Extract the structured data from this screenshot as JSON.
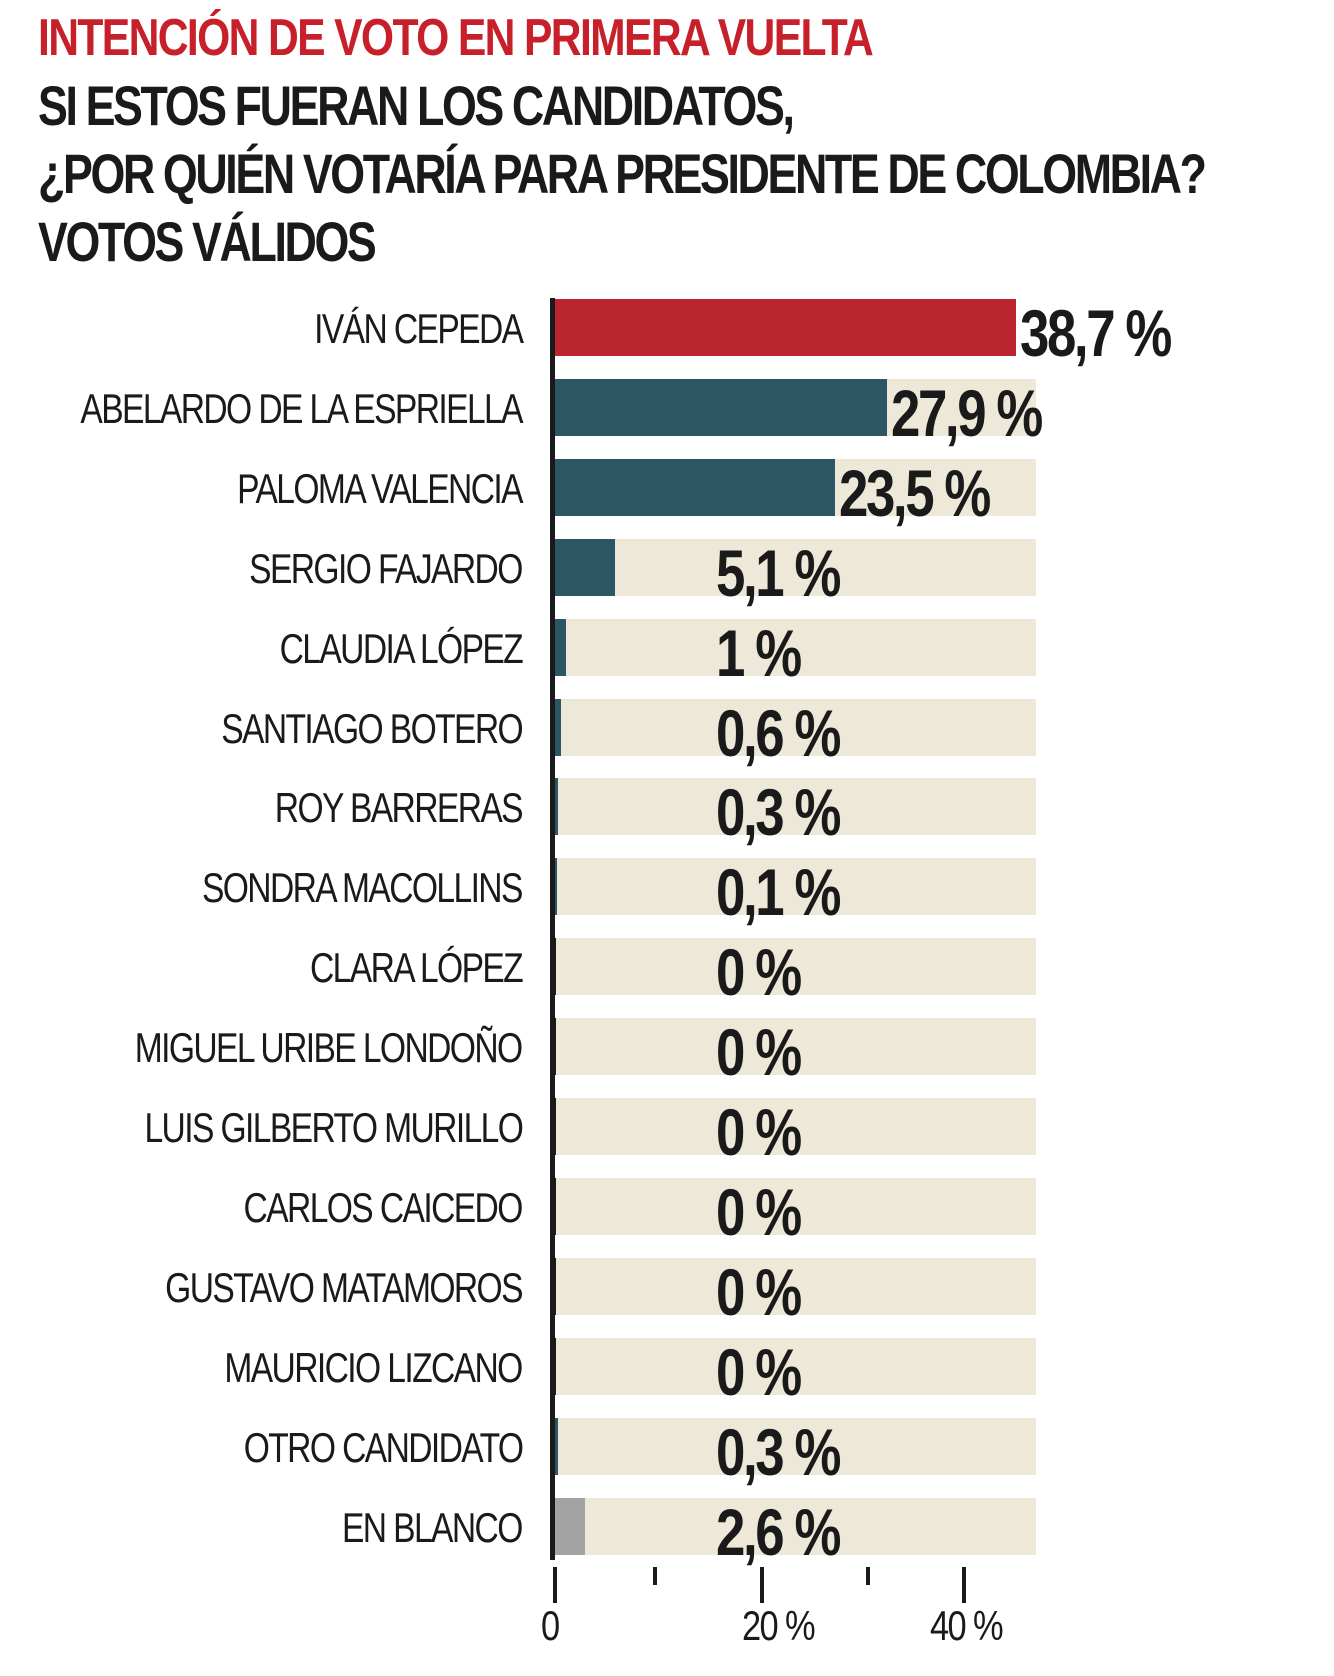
{
  "header": {
    "title": "INTENCIÓN DE VOTO EN PRIMERA VUELTA",
    "subtitle_lines": [
      "SI ESTOS FUERAN LOS CANDIDATOS,",
      "¿POR QUIÉN VOTARÍA PARA PRESIDENTE DE COLOMBIA?",
      "VOTOS VÁLIDOS"
    ]
  },
  "colors": {
    "title": "#c8202b",
    "leader_bar": "#bb2530",
    "candidate_bar": "#2d5664",
    "blank_bar": "#a3a3a3",
    "track": "#ede8d8",
    "axis": "#1a1a1a"
  },
  "chart_data": {
    "type": "bar",
    "orientation": "horizontal",
    "title": "INTENCIÓN DE VOTO EN PRIMERA VUELTA",
    "subtitle": "SI ESTOS FUERAN LOS CANDIDATOS, ¿POR QUIÉN VOTARÍA PARA PRESIDENTE DE COLOMBIA? VOTOS VÁLIDOS",
    "xlabel": "",
    "ylabel": "",
    "xlim": [
      0,
      40
    ],
    "x_ticks": [
      "0",
      "20 %",
      "40 %"
    ],
    "minor_ticks": [
      10,
      30
    ],
    "grid": false,
    "legend": null,
    "categories": [
      "IVÁN CEPEDA",
      "ABELARDO DE LA ESPRIELLA",
      "PALOMA VALENCIA",
      "SERGIO FAJARDO",
      "CLAUDIA LÓPEZ",
      "SANTIAGO BOTERO",
      "ROY BARRERAS",
      "SONDRA MACOLLINS",
      "CLARA LÓPEZ",
      "MIGUEL URIBE LONDOÑO",
      "LUIS GILBERTO MURILLO",
      "CARLOS CAICEDO",
      "GUSTAVO MATAMOROS",
      "MAURICIO LIZCANO",
      "OTRO CANDIDATO",
      "EN BLANCO"
    ],
    "values": [
      38.7,
      27.9,
      23.5,
      5.1,
      1,
      0.6,
      0.3,
      0.1,
      0,
      0,
      0,
      0,
      0,
      0,
      0.3,
      2.6
    ],
    "value_labels": [
      "38,7 %",
      "27,9 %",
      "23,5 %",
      "5,1 %",
      "1 %",
      "0,6 %",
      "0,3 %",
      "0,1 %",
      "0 %",
      "0 %",
      "0 %",
      "0 %",
      "0 %",
      "0 %",
      "0,3 %",
      "2,6 %"
    ]
  },
  "rows": [
    {
      "name": "IVÁN CEPEDA",
      "value": 38.7,
      "label": "38,7 %",
      "color": "#bb2530"
    },
    {
      "name": "ABELARDO DE LA ESPRIELLA",
      "value": 27.9,
      "label": "27,9 %",
      "color": "#2d5664"
    },
    {
      "name": "PALOMA VALENCIA",
      "value": 23.5,
      "label": "23,5 %",
      "color": "#2d5664"
    },
    {
      "name": "SERGIO FAJARDO",
      "value": 5.1,
      "label": "5,1 %",
      "color": "#2d5664"
    },
    {
      "name": "CLAUDIA LÓPEZ",
      "value": 1,
      "label": "1 %",
      "color": "#2d5664"
    },
    {
      "name": "SANTIAGO BOTERO",
      "value": 0.6,
      "label": "0,6 %",
      "color": "#2d5664"
    },
    {
      "name": "ROY BARRERAS",
      "value": 0.3,
      "label": "0,3 %",
      "color": "#2d5664"
    },
    {
      "name": "SONDRA MACOLLINS",
      "value": 0.1,
      "label": "0,1 %",
      "color": "#2d5664"
    },
    {
      "name": "CLARA LÓPEZ",
      "value": 0,
      "label": "0 %",
      "color": "#2d5664"
    },
    {
      "name": "MIGUEL URIBE LONDOÑO",
      "value": 0,
      "label": "0 %",
      "color": "#2d5664"
    },
    {
      "name": "LUIS GILBERTO MURILLO",
      "value": 0,
      "label": "0 %",
      "color": "#2d5664"
    },
    {
      "name": "CARLOS CAICEDO",
      "value": 0,
      "label": "0 %",
      "color": "#2d5664"
    },
    {
      "name": "GUSTAVO MATAMOROS",
      "value": 0,
      "label": "0 %",
      "color": "#2d5664"
    },
    {
      "name": "MAURICIO LIZCANO",
      "value": 0,
      "label": "0 %",
      "color": "#2d5664"
    },
    {
      "name": "OTRO CANDIDATO",
      "value": 0.3,
      "label": "0,3 %",
      "color": "#2d5664"
    },
    {
      "name": "EN BLANCO",
      "value": 2.6,
      "label": "2,6 %",
      "color": "#a3a3a3"
    }
  ],
  "axis": {
    "tick_labels": [
      "0",
      "20 %",
      "40 %"
    ]
  }
}
